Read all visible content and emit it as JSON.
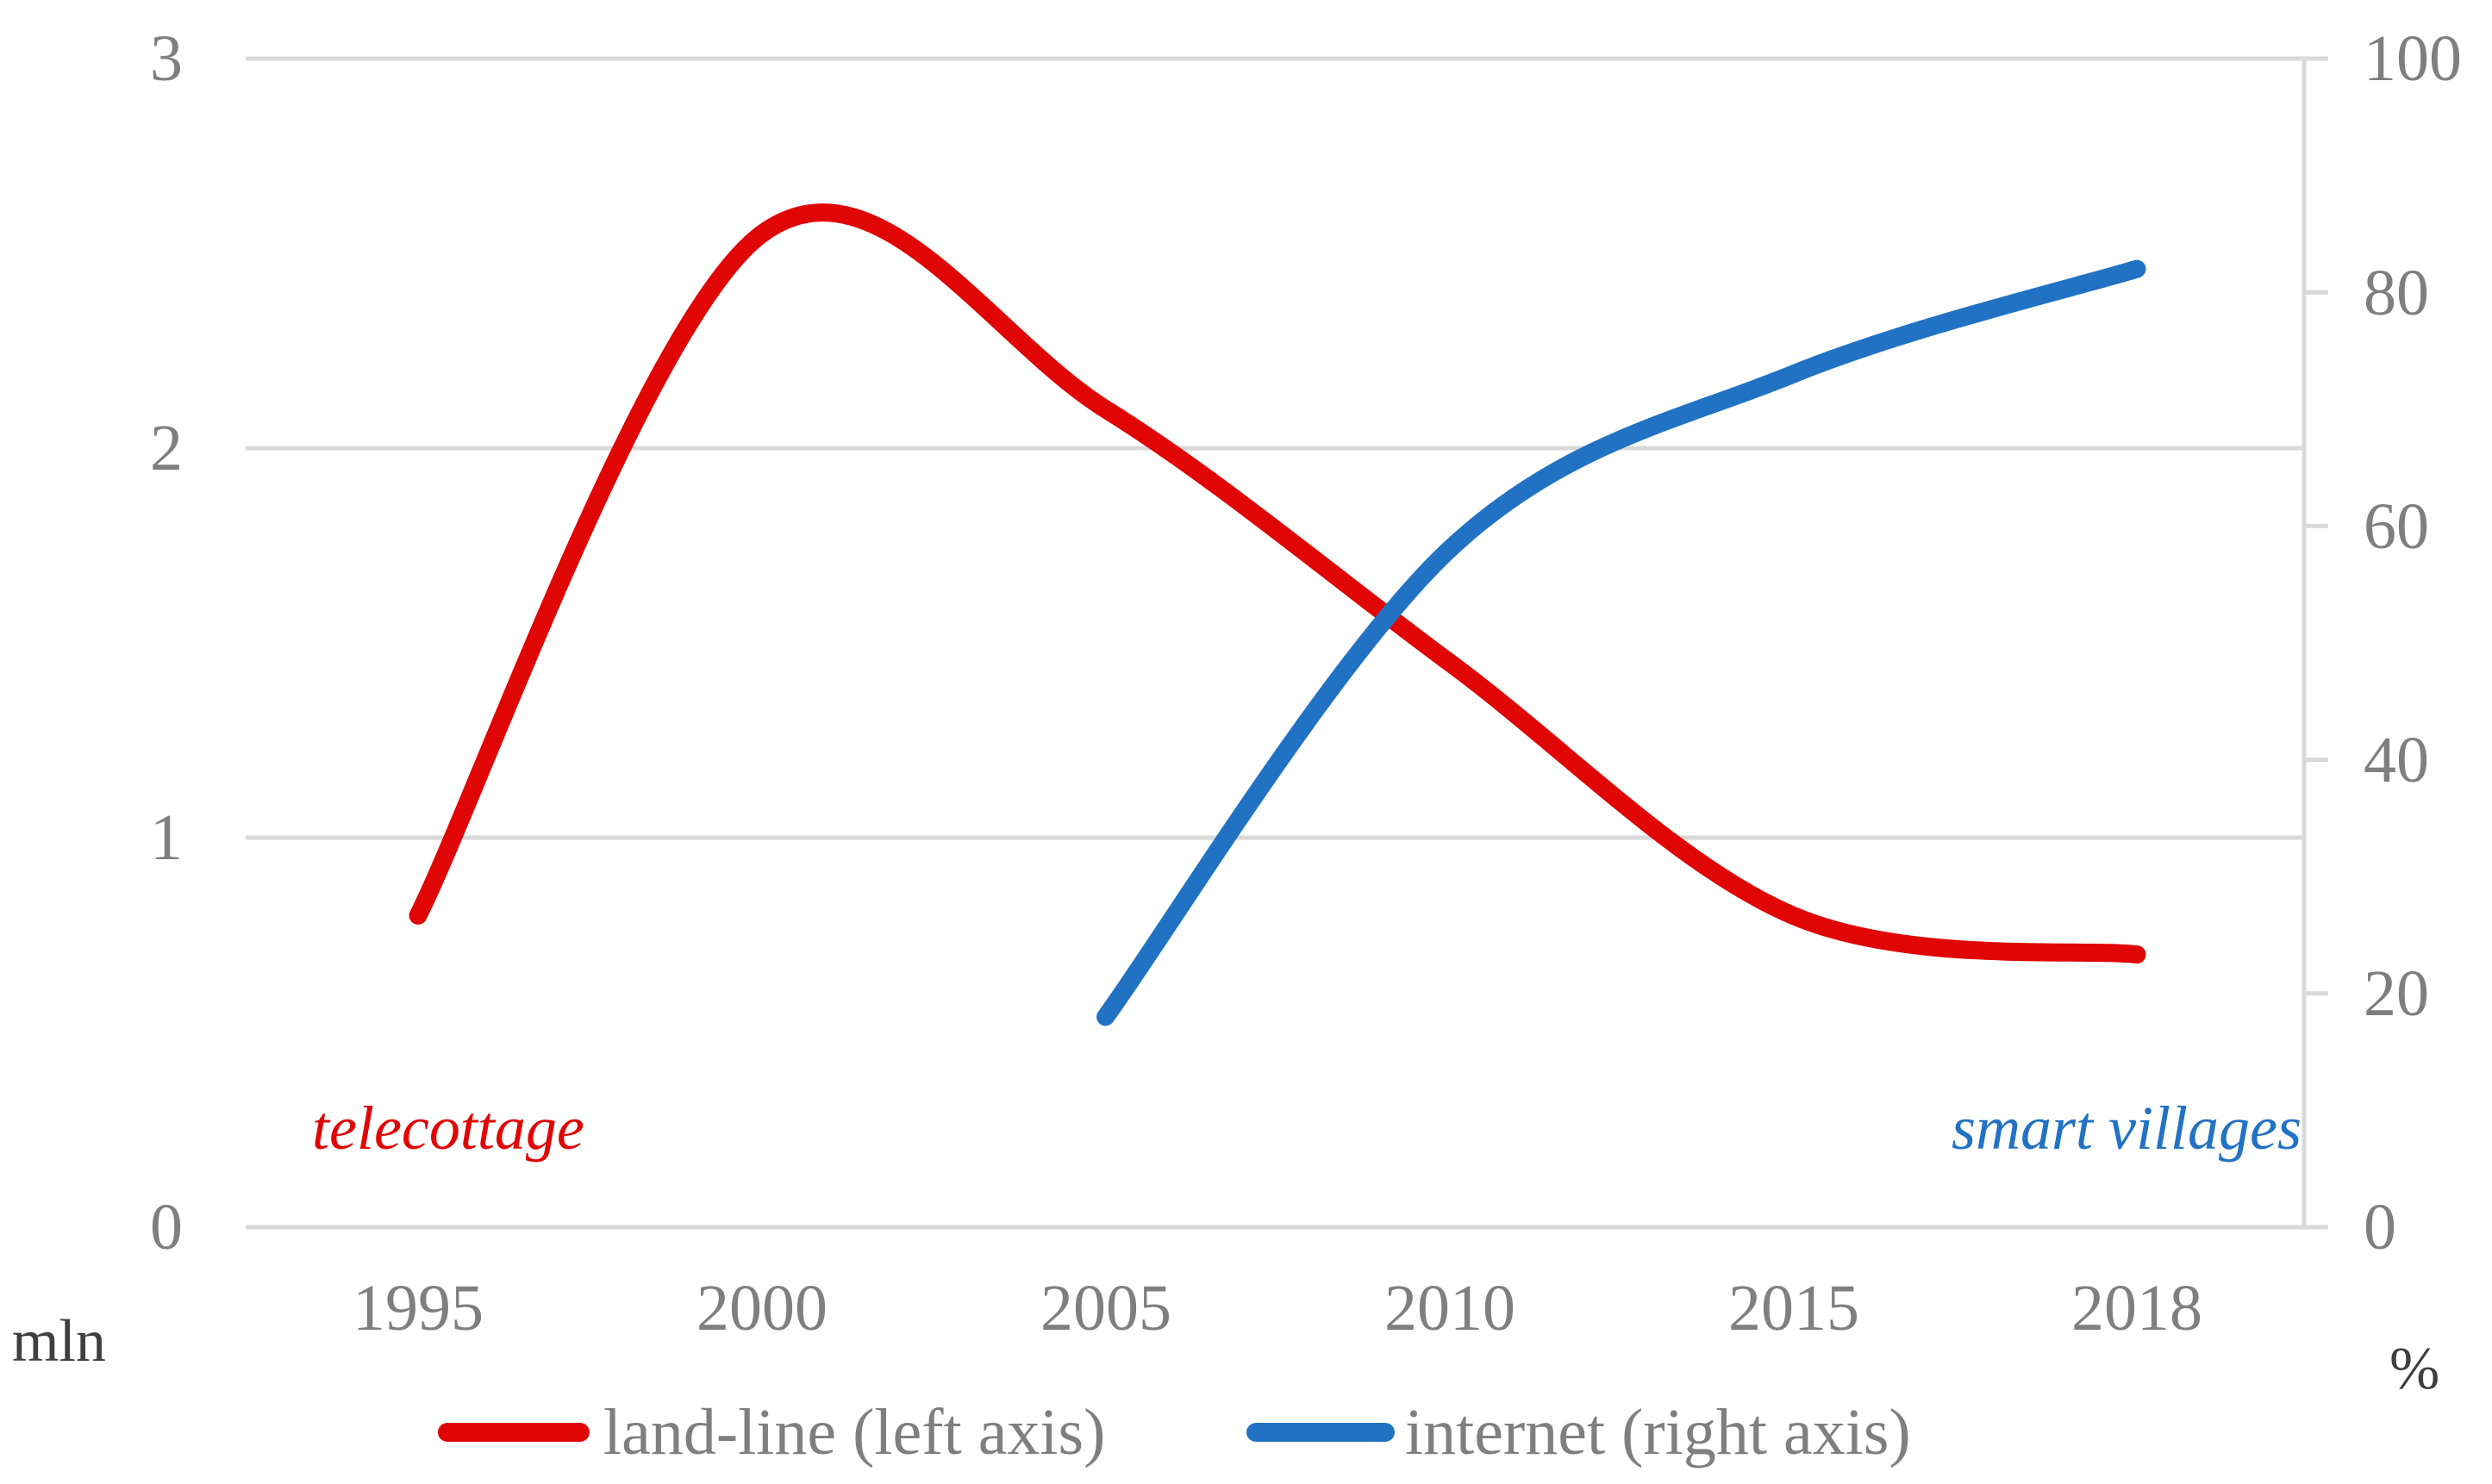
{
  "chart_data": {
    "type": "line",
    "smoothed": true,
    "grid": "horizontal",
    "legend_position": "bottom",
    "categories": [
      "1995",
      "2000",
      "2005",
      "2010",
      "2015",
      "2018"
    ],
    "series": [
      {
        "name": "land-line (left axis)",
        "axis": "left",
        "color": "#e00606",
        "values": [
          0.8,
          2.55,
          2.1,
          1.45,
          0.8,
          0.7
        ]
      },
      {
        "name": "internet (right axis)",
        "axis": "right",
        "color": "#2272c4",
        "values": [
          null,
          null,
          18,
          58,
          73,
          82
        ]
      }
    ],
    "left_axis": {
      "unit": "mln",
      "range": [
        0,
        3
      ],
      "ticks": [
        3,
        2,
        1,
        0
      ]
    },
    "right_axis": {
      "unit": "%",
      "range": [
        0,
        100
      ],
      "ticks": [
        100,
        80,
        60,
        40,
        20,
        0
      ]
    },
    "annotations": [
      {
        "text": "telecottage",
        "color": "#e00606"
      },
      {
        "text": "smart villages",
        "color": "#2272c4"
      }
    ],
    "colors": {
      "gridline": "#d9d9d9",
      "tick_text": "#7f7f7f",
      "unit_text": "#3f3f3f"
    }
  },
  "legend": {
    "items": [
      {
        "label": "land-line (left axis)",
        "color": "#e00606"
      },
      {
        "label": "internet (right axis)",
        "color": "#2272c4"
      }
    ]
  }
}
